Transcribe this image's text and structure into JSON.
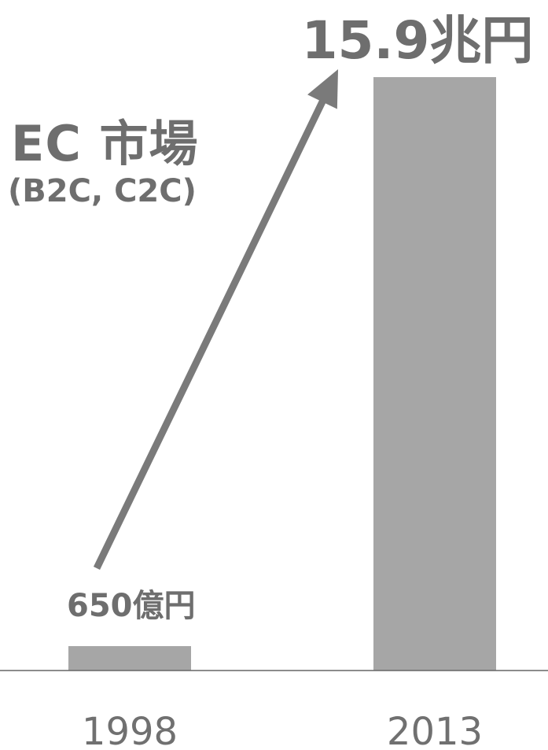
{
  "chart_data": {
    "type": "bar",
    "title": "EC 市場",
    "subtitle": "(B2C, C2C)",
    "categories": [
      "1998",
      "2013"
    ],
    "values": [
      0.065,
      15.9
    ],
    "value_unit": "兆円",
    "data_labels": [
      "650億円",
      "15.9兆円"
    ],
    "xlabel": "",
    "ylabel": "",
    "ylim": [
      0,
      15.9
    ],
    "grid": false,
    "legend": "none",
    "annotations": [
      {
        "type": "arrow",
        "from_category": "1998",
        "to_category": "2013",
        "meaning": "growth"
      }
    ],
    "colors": {
      "bar": "#a6a6a6",
      "arrow": "#7a7a7a",
      "text": "#6e6e6e",
      "axis": "#666666",
      "tick_text": "#707070"
    }
  }
}
